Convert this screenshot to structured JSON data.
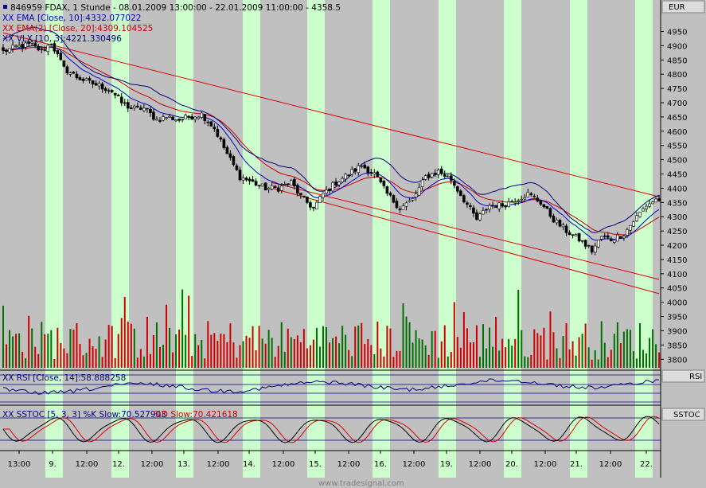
{
  "header": {
    "title": "846959 FDAX, 1 Stunde - 08.01.2009 13:00:00 - 22.01.2009 11:00:00 - 4358.5",
    "currency": "EUR"
  },
  "legend": {
    "ema10": "XX EMA [Close, 10]:4332.077022",
    "ema20": "XX EMA(2) [Close, 20]:4309.104525",
    "vlx": "XX VLX [10, 3]:4221.330496"
  },
  "rsi_panel": {
    "legend": "XX RSI [Close, 14]:58.888258",
    "tag": "RSI"
  },
  "stoc_panel": {
    "legend_k": "XX SSTOC [5, 3, 3] %K Slow:70.527903",
    "legend_d": "%D Slow:70.421618",
    "tag": "SSTOC"
  },
  "watermark": "www.tradesignal.com",
  "colors": {
    "up": "#007000",
    "down": "#d00000",
    "ema10": "#0000cc",
    "ema20": "#cc0000",
    "band": "#ccffcc",
    "bg": "#c0c0c0"
  },
  "chart_data": {
    "type": "candlestick",
    "x_labels": [
      "13:00",
      "9.",
      "12:00",
      "12.",
      "12:00",
      "13.",
      "12:00",
      "14.",
      "12:00",
      "15.",
      "12:00",
      "16.",
      "12:00",
      "19.",
      "12:00",
      "20.",
      "12:00",
      "21.",
      "12:00",
      "22."
    ],
    "price_ticks": [
      4950,
      4900,
      4850,
      4800,
      4750,
      4700,
      4650,
      4600,
      4550,
      4500,
      4450,
      4400,
      4350,
      4300,
      4250,
      4200,
      4150,
      4100,
      4050,
      4000,
      3950,
      3900,
      3850,
      3800
    ],
    "ylim": [
      3770,
      5010
    ],
    "anchors": [
      [
        0,
        4880
      ],
      [
        4,
        4895
      ],
      [
        9,
        4905
      ],
      [
        12,
        4880
      ],
      [
        15,
        4910
      ],
      [
        19,
        4820
      ],
      [
        23,
        4790
      ],
      [
        27,
        4770
      ],
      [
        30,
        4760
      ],
      [
        34,
        4740
      ],
      [
        37,
        4700
      ],
      [
        40,
        4680
      ],
      [
        44,
        4680
      ],
      [
        48,
        4640
      ],
      [
        51,
        4650
      ],
      [
        55,
        4640
      ],
      [
        58,
        4650
      ],
      [
        62,
        4660
      ],
      [
        66,
        4610
      ],
      [
        70,
        4520
      ],
      [
        74,
        4440
      ],
      [
        78,
        4420
      ],
      [
        82,
        4400
      ],
      [
        86,
        4400
      ],
      [
        90,
        4420
      ],
      [
        93,
        4370
      ],
      [
        97,
        4330
      ],
      [
        100,
        4380
      ],
      [
        104,
        4420
      ],
      [
        108,
        4450
      ],
      [
        112,
        4480
      ],
      [
        116,
        4450
      ],
      [
        120,
        4380
      ],
      [
        124,
        4330
      ],
      [
        128,
        4360
      ],
      [
        132,
        4440
      ],
      [
        136,
        4460
      ],
      [
        140,
        4430
      ],
      [
        144,
        4360
      ],
      [
        148,
        4290
      ],
      [
        152,
        4340
      ],
      [
        156,
        4340
      ],
      [
        160,
        4360
      ],
      [
        164,
        4380
      ],
      [
        168,
        4350
      ],
      [
        172,
        4290
      ],
      [
        176,
        4250
      ],
      [
        180,
        4220
      ],
      [
        184,
        4180
      ],
      [
        187,
        4230
      ],
      [
        190,
        4220
      ],
      [
        194,
        4240
      ],
      [
        198,
        4300
      ],
      [
        201,
        4340
      ],
      [
        204,
        4360
      ]
    ],
    "candles_per_session": 10,
    "overlays": [
      "EMA [Close, 10]",
      "EMA(2) [Close, 20]",
      "VLX [10, 3]"
    ],
    "channel_lines": [
      {
        "from": [
          0,
          4945
        ],
        "to": [
          205,
          4370
        ]
      },
      {
        "from": [
          84,
          4420
        ],
        "to": [
          205,
          4080
        ]
      },
      {
        "from": [
          84,
          4400
        ],
        "to": [
          205,
          4030
        ]
      }
    ],
    "rsi": {
      "last": 58.888258
    },
    "sstoc": {
      "k_last": 70.527903,
      "d_last": 70.421618
    }
  }
}
